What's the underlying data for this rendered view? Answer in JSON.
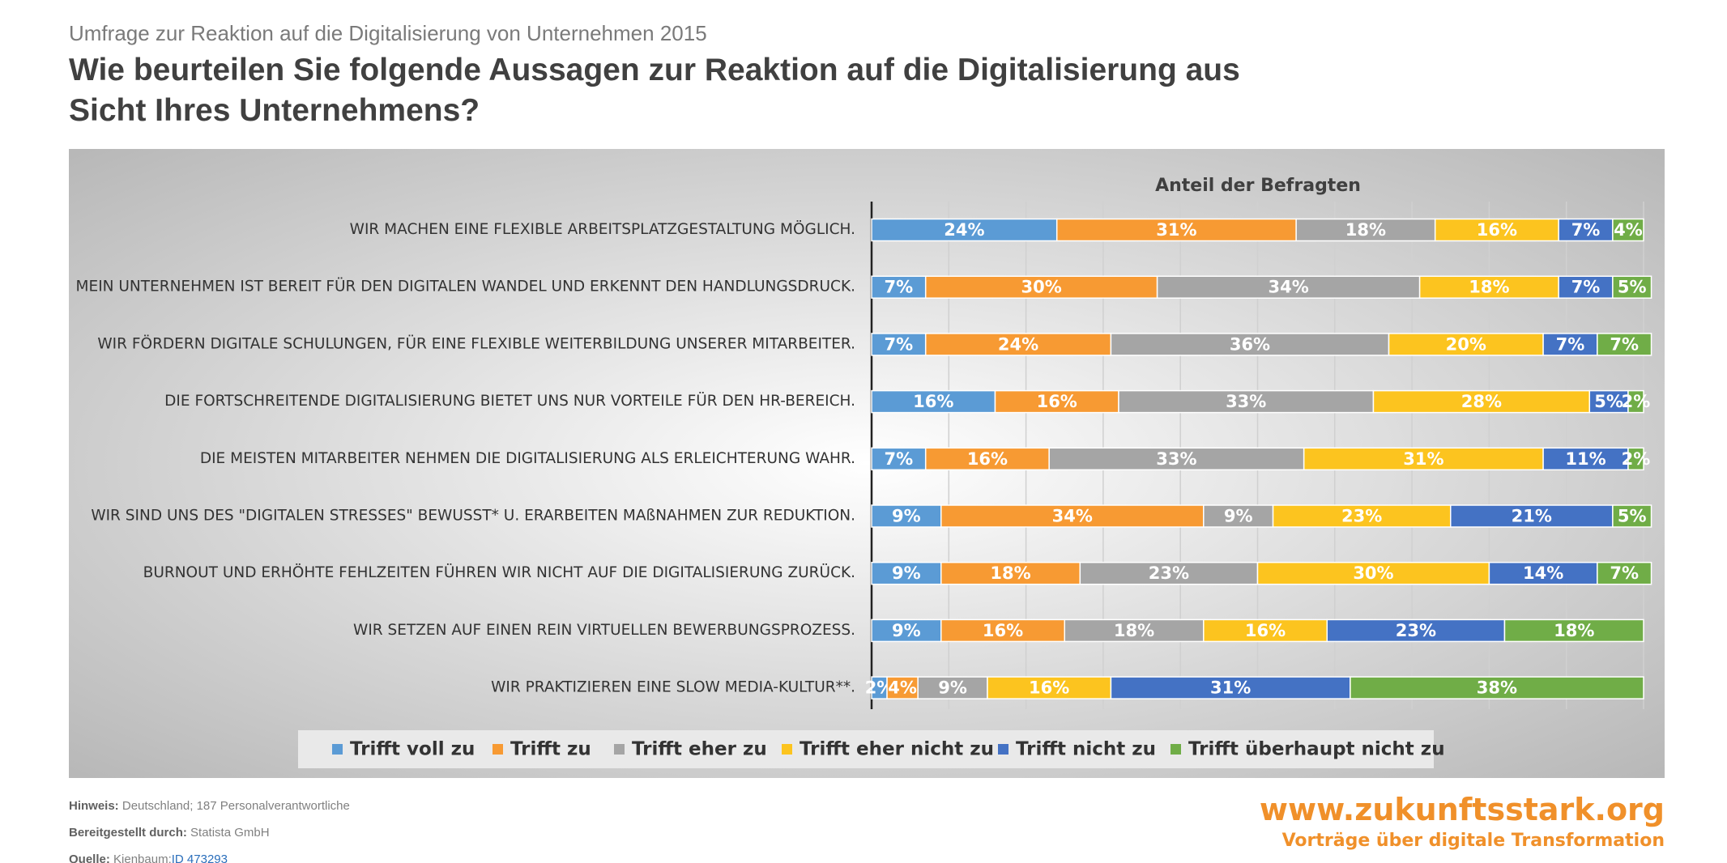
{
  "header": {
    "supertitle": "Umfrage zur Reaktion auf die Digitalisierung von Unternehmen 2015",
    "title": "Wie beurteilen Sie folgende Aussagen zur Reaktion auf die Digitalisierung aus Sicht Ihres Unternehmens?"
  },
  "chart_data": {
    "type": "stacked-bar-horizontal",
    "axis_title": "Anteil der Befragten",
    "categories": [
      "WIR MACHEN EINE FLEXIBLE ARBEITSPLATZGESTALTUNG MÖGLICH.",
      "MEIN UNTERNEHMEN IST BEREIT FÜR DEN DIGITALEN WANDEL UND ERKENNT DEN HANDLUNGSDRUCK.",
      "WIR FÖRDERN DIGITALE SCHULUNGEN, FÜR EINE FLEXIBLE WEITERBILDUNG UNSERER MITARBEITER.",
      "DIE FORTSCHREITENDE DIGITALISIERUNG BIETET UNS NUR VORTEILE FÜR DEN HR-BEREICH.",
      "DIE MEISTEN MITARBEITER NEHMEN DIE DIGITALISIERUNG ALS ERLEICHTERUNG WAHR.",
      "WIR SIND UNS DES \"DIGITALEN STRESSES\" BEWUSST* U. ERARBEITEN MAßNAHMEN ZUR REDUKTION.",
      "BURNOUT UND ERHÖHTE FEHLZEITEN FÜHREN WIR NICHT AUF DIE DIGITALISIERUNG ZURÜCK.",
      "WIR SETZEN AUF EINEN REIN VIRTUELLEN BEWERBUNGSPROZESS.",
      "WIR PRAKTIZIEREN EINE SLOW MEDIA-KULTUR**."
    ],
    "series": [
      {
        "name": "Trifft voll zu",
        "color": "#5b9bd5",
        "values": [
          24,
          7,
          7,
          16,
          7,
          9,
          9,
          9,
          2
        ],
        "value_labels": [
          "24%",
          "7%",
          "7%",
          "16%",
          "7%",
          "9%",
          "9%",
          "9%",
          "2%"
        ]
      },
      {
        "name": "Trifft zu",
        "color": "#f79a33",
        "values": [
          31,
          30,
          24,
          16,
          16,
          34,
          18,
          16,
          4
        ],
        "value_labels": [
          "31%",
          "30%",
          "24%",
          "16%",
          "16%",
          "34%",
          "18%",
          "16%",
          "4%"
        ]
      },
      {
        "name": "Trifft eher zu",
        "color": "#a5a5a5",
        "values": [
          18,
          34,
          36,
          33,
          33,
          9,
          23,
          18,
          9
        ],
        "value_labels": [
          "18%",
          "34%",
          "36%",
          "33%",
          "33%",
          "9%",
          "23%",
          "18%",
          "9%"
        ]
      },
      {
        "name": "Trifft eher nicht zu",
        "color": "#fcc41f",
        "values": [
          16,
          18,
          20,
          28,
          31,
          23,
          30,
          16,
          16
        ],
        "value_labels": [
          "16%",
          "18%",
          "20%",
          "28%",
          "31%",
          "23%",
          "30%",
          "16%",
          "16%"
        ]
      },
      {
        "name": "Trifft nicht zu",
        "color": "#4472c4",
        "values": [
          7,
          7,
          7,
          5,
          11,
          21,
          14,
          23,
          31
        ],
        "value_labels": [
          "7%",
          "7%",
          "7%",
          "5%",
          "11%",
          "21%",
          "14%",
          "23%",
          "31%"
        ]
      },
      {
        "name": "Trifft überhaupt nicht zu",
        "color": "#70ad47",
        "values": [
          4,
          5,
          7,
          2,
          2,
          5,
          7,
          18,
          38
        ],
        "value_labels": [
          "4%",
          "5%",
          "7%",
          "2%",
          "2%",
          "5%",
          "7%",
          "18%",
          "38%"
        ]
      }
    ],
    "xlim": [
      0,
      100
    ],
    "xticks": [
      0,
      10,
      20,
      30,
      40,
      50,
      60,
      70,
      80,
      90,
      100
    ],
    "grid": true,
    "legend": "bottom"
  },
  "footer": {
    "note_label": "Hinweis:",
    "note": "Deutschland; 187 Personalverantwortliche",
    "provided_label": "Bereitgestellt durch:",
    "provided": "Statista GmbH",
    "source_label": "Quelle:",
    "source": "Kienbaum;",
    "source_id": "ID 473293",
    "brand": "www.zukunftsstark.org",
    "brand_tagline": "Vorträge über digitale Transformation"
  }
}
